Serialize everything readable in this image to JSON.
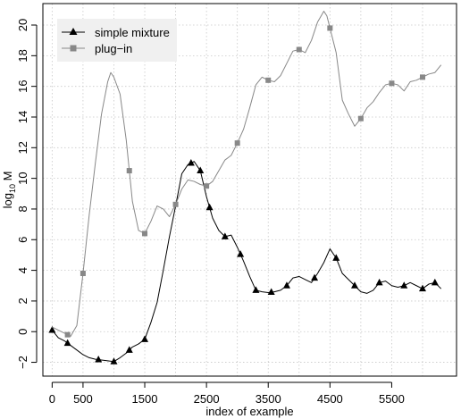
{
  "chart_data": {
    "type": "line",
    "title": "",
    "xlabel": "index of example",
    "ylabel_main": "log",
    "ylabel_sub": "10",
    "ylabel_tail": " M",
    "xlim": [
      -150,
      6550
    ],
    "ylim": [
      -2.9,
      21.4
    ],
    "x_ticks": [
      0,
      500,
      1500,
      2500,
      3500,
      4500,
      5500
    ],
    "y_ticks": [
      -2,
      0,
      2,
      4,
      6,
      8,
      10,
      12,
      14,
      16,
      18,
      20
    ],
    "x_grid_ticks": [
      0,
      500,
      1000,
      1500,
      2000,
      2500,
      3000,
      3500,
      4000,
      4500,
      5000,
      5500,
      6000
    ],
    "grid": true,
    "legend_position": "top-left",
    "series": [
      {
        "name": "simple mixture",
        "color": "#000000",
        "marker": "triangle",
        "x": [
          0,
          100,
          200,
          300,
          400,
          500,
          600,
          700,
          800,
          900,
          1000,
          1100,
          1200,
          1300,
          1400,
          1500,
          1600,
          1700,
          1800,
          1900,
          2000,
          2100,
          2200,
          2300,
          2400,
          2500,
          2600,
          2700,
          2800,
          2900,
          3000,
          3100,
          3200,
          3300,
          3400,
          3500,
          3600,
          3700,
          3800,
          3900,
          4000,
          4100,
          4200,
          4300,
          4400,
          4500,
          4600,
          4700,
          4800,
          4900,
          5000,
          5100,
          5200,
          5300,
          5400,
          5500,
          5600,
          5700,
          5800,
          5900,
          6000,
          6100,
          6200,
          6300
        ],
        "values": [
          0.1,
          -0.4,
          -0.6,
          -0.9,
          -1.2,
          -1.5,
          -1.7,
          -1.8,
          -1.85,
          -1.9,
          -1.95,
          -1.7,
          -1.4,
          -1.0,
          -0.8,
          -0.5,
          0.6,
          1.9,
          4.0,
          6.2,
          8.2,
          10.3,
          10.9,
          11.1,
          10.5,
          8.8,
          7.4,
          6.6,
          6.2,
          6.3,
          5.5,
          4.6,
          3.6,
          2.7,
          2.6,
          2.55,
          2.6,
          2.7,
          3.0,
          3.5,
          3.6,
          3.4,
          3.2,
          3.8,
          4.5,
          5.4,
          4.8,
          3.8,
          3.4,
          3.0,
          2.6,
          2.5,
          2.7,
          3.2,
          3.3,
          3.0,
          2.9,
          3.0,
          3.2,
          3.0,
          2.8,
          3.1,
          3.2,
          2.8
        ],
        "marker_x": [
          0,
          250,
          750,
          1000,
          1250,
          1500,
          2250,
          2400,
          2550,
          2800,
          3050,
          3300,
          3550,
          3800,
          4250,
          4600,
          4900,
          5300,
          5700,
          6000,
          6200
        ]
      },
      {
        "name": "plug−in",
        "color": "#888888",
        "marker": "square",
        "x": [
          0,
          100,
          200,
          300,
          400,
          500,
          600,
          700,
          800,
          900,
          950,
          1000,
          1100,
          1200,
          1300,
          1400,
          1500,
          1600,
          1700,
          1800,
          1900,
          2000,
          2100,
          2200,
          2300,
          2400,
          2500,
          2600,
          2700,
          2800,
          2900,
          3000,
          3100,
          3200,
          3300,
          3400,
          3500,
          3600,
          3700,
          3800,
          3900,
          4000,
          4100,
          4200,
          4300,
          4400,
          4450,
          4500,
          4600,
          4700,
          4800,
          4900,
          5000,
          5100,
          5200,
          5300,
          5400,
          5500,
          5600,
          5700,
          5800,
          5900,
          6000,
          6100,
          6200,
          6300
        ],
        "values": [
          0.3,
          0.1,
          -0.1,
          -0.3,
          0.4,
          3.8,
          7.6,
          11.0,
          14.2,
          16.3,
          16.9,
          16.6,
          15.5,
          12.5,
          8.5,
          6.6,
          6.4,
          7.2,
          8.2,
          8.0,
          7.5,
          8.3,
          9.3,
          9.9,
          9.8,
          9.6,
          9.5,
          9.8,
          10.5,
          11.2,
          11.5,
          12.3,
          13.2,
          14.6,
          16.1,
          16.6,
          16.4,
          16.3,
          16.7,
          17.5,
          18.3,
          18.4,
          18.2,
          19.0,
          20.2,
          20.9,
          20.6,
          19.8,
          18.2,
          15.1,
          14.2,
          13.4,
          13.9,
          14.6,
          15.0,
          15.6,
          16.1,
          16.2,
          16.1,
          15.7,
          16.3,
          16.4,
          16.6,
          16.8,
          16.9,
          17.4
        ],
        "marker_x": [
          250,
          500,
          1250,
          1500,
          2000,
          2500,
          3000,
          3500,
          4000,
          4500,
          5000,
          5500,
          6000
        ]
      }
    ]
  }
}
